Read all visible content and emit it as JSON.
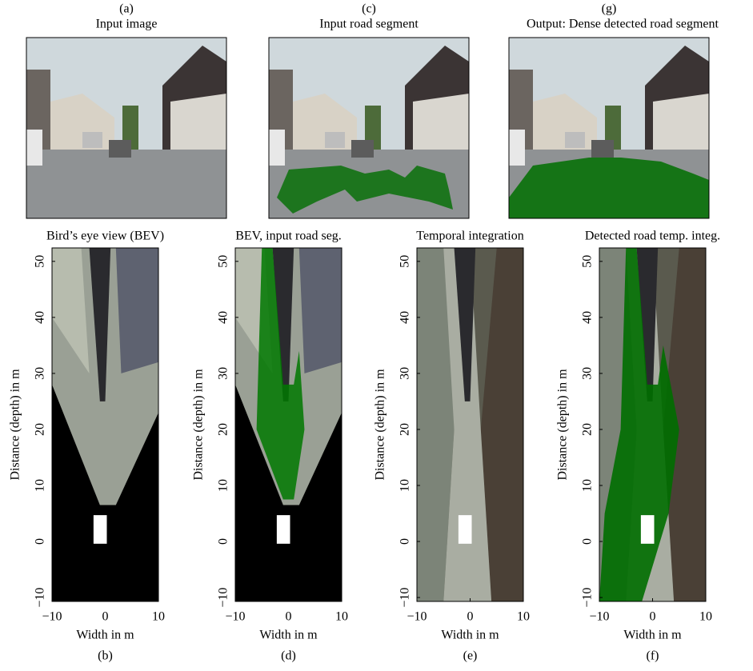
{
  "top_panels": [
    {
      "letter": "(a)",
      "title": "Input image"
    },
    {
      "letter": "(c)",
      "title": "Input road segment"
    },
    {
      "letter": "(g)",
      "title": "Output: Dense detected road segment"
    }
  ],
  "bev_panels": [
    {
      "letter": "(b)",
      "title": "Bird’s eye view (BEV)"
    },
    {
      "letter": "(d)",
      "title": "BEV, input road seg."
    },
    {
      "letter": "(e)",
      "title": "Temporal integration"
    },
    {
      "letter": "(f)",
      "title": "Detected road temp. integ."
    }
  ],
  "axes": {
    "xlabel": "Width in m",
    "ylabel": "Distance (depth) in m",
    "xlim": [
      -10,
      10
    ],
    "ylim": [
      -10.7,
      52.4
    ],
    "xticks": [
      {
        "value": -10,
        "label": "−10"
      },
      0,
      10
    ],
    "yticks": [
      {
        "value": -10,
        "label": "−10"
      },
      0,
      10,
      20,
      30,
      40,
      50
    ]
  }
}
